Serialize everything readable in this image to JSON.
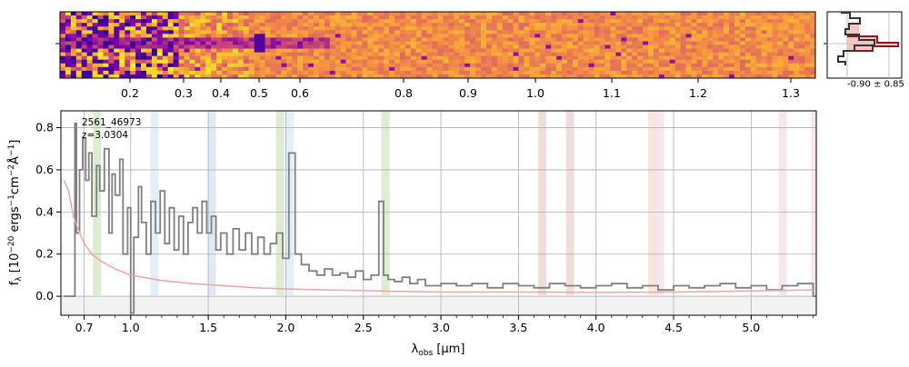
{
  "chart_data": [
    {
      "type": "heatmap",
      "name": "2D spectrum",
      "top_axis_ticks": [
        "0.2",
        "0.3",
        "0.4",
        "0.5",
        "0.6",
        "0.8",
        "0.9",
        "1.0",
        "1.1",
        "1.2",
        "1.3"
      ],
      "colormap": [
        "#0d0887",
        "#7e03a8",
        "#cc4778",
        "#f89540",
        "#f0f921"
      ],
      "side_profile_label": "-0.90 ± 0.85"
    },
    {
      "type": "line",
      "name": "1D spectrum",
      "annotation_id": "2561_46973",
      "annotation_z": "z=3.0304",
      "xlabel_main": "λ",
      "xlabel_sub": "obs",
      "xlabel_unit": " [μm]",
      "ylabel": "f_λ [10^-20 ergs^-1 cm^-2 Å^-1]",
      "xlim": [
        0.55,
        5.42
      ],
      "ylim": [
        -0.09,
        0.88
      ],
      "grid": true,
      "x_ticks": [
        0.7,
        1.0,
        1.5,
        2.0,
        2.5,
        3.0,
        3.5,
        4.0,
        4.5,
        5.0
      ],
      "x_tick_labels": [
        "0.7",
        "1.0",
        "1.5",
        "2.0",
        "2.5",
        "3.0",
        "3.5",
        "4.0",
        "4.5",
        "5.0"
      ],
      "y_ticks": [
        0.0,
        0.2,
        0.4,
        0.6,
        0.8
      ],
      "y_tick_labels": [
        "0.0",
        "0.2",
        "0.4",
        "0.6",
        "0.8"
      ],
      "series": [
        {
          "color": "#808080",
          "x": [
            0.57,
            0.62,
            0.64,
            0.65,
            0.67,
            0.69,
            0.71,
            0.73,
            0.75,
            0.78,
            0.8,
            0.83,
            0.86,
            0.88,
            0.9,
            0.93,
            0.95,
            0.98,
            1.0,
            1.02,
            1.05,
            1.07,
            1.1,
            1.13,
            1.16,
            1.19,
            1.22,
            1.25,
            1.28,
            1.31,
            1.34,
            1.37,
            1.4,
            1.43,
            1.46,
            1.49,
            1.52,
            1.55,
            1.58,
            1.62,
            1.66,
            1.7,
            1.74,
            1.78,
            1.82,
            1.86,
            1.9,
            1.94,
            1.98,
            2.02,
            2.06,
            2.1,
            2.15,
            2.2,
            2.25,
            2.3,
            2.35,
            2.4,
            2.45,
            2.5,
            2.55,
            2.6,
            2.63,
            2.66,
            2.7,
            2.75,
            2.8,
            2.85,
            2.9,
            3.0,
            3.1,
            3.2,
            3.3,
            3.4,
            3.5,
            3.6,
            3.7,
            3.8,
            3.9,
            4.0,
            4.1,
            4.2,
            4.3,
            4.4,
            4.5,
            4.6,
            4.7,
            4.8,
            4.9,
            5.0,
            5.1,
            5.2,
            5.3,
            5.4
          ],
          "y": [
            0.0,
            0.0,
            0.82,
            0.3,
            0.6,
            0.75,
            0.55,
            0.68,
            0.38,
            0.62,
            0.5,
            0.7,
            0.3,
            0.58,
            0.48,
            0.65,
            0.2,
            0.42,
            -0.08,
            0.28,
            0.52,
            0.35,
            0.2,
            0.45,
            0.3,
            0.5,
            0.25,
            0.42,
            0.22,
            0.38,
            0.2,
            0.35,
            0.42,
            0.3,
            0.45,
            0.3,
            0.38,
            0.22,
            0.3,
            0.2,
            0.32,
            0.22,
            0.3,
            0.2,
            0.28,
            0.2,
            0.25,
            0.3,
            0.18,
            0.68,
            0.2,
            0.15,
            0.12,
            0.1,
            0.13,
            0.1,
            0.11,
            0.09,
            0.12,
            0.08,
            0.1,
            0.45,
            0.1,
            0.08,
            0.07,
            0.09,
            0.06,
            0.08,
            0.05,
            0.06,
            0.05,
            0.06,
            0.04,
            0.06,
            0.05,
            0.04,
            0.06,
            0.05,
            0.04,
            0.05,
            0.06,
            0.04,
            0.05,
            0.03,
            0.05,
            0.04,
            0.05,
            0.06,
            0.04,
            0.05,
            0.03,
            0.05,
            0.06,
            0.0
          ]
        },
        {
          "color": "#f4a3a3",
          "x": [
            0.57,
            0.6,
            0.63,
            0.66,
            0.7,
            0.75,
            0.8,
            0.9,
            1.0,
            1.2,
            1.4,
            1.6,
            1.8,
            2.0,
            2.3,
            2.6,
            3.0,
            3.5,
            4.0,
            4.5,
            5.0,
            5.4
          ],
          "y": [
            0.55,
            0.5,
            0.38,
            0.32,
            0.25,
            0.2,
            0.17,
            0.13,
            0.1,
            0.075,
            0.06,
            0.05,
            0.04,
            0.035,
            0.03,
            0.025,
            0.02,
            0.02,
            0.018,
            0.02,
            0.025,
            0.03
          ]
        }
      ],
      "bands": [
        {
          "x": 0.78,
          "color": "#c8e0b4"
        },
        {
          "x": 1.15,
          "color": "#cfe2f3"
        },
        {
          "x": 1.52,
          "color": "#cfd9f0"
        },
        {
          "x": 1.96,
          "color": "#c8e0b4"
        },
        {
          "x": 2.02,
          "color": "#cfe2f3"
        },
        {
          "x": 2.64,
          "color": "#c8e0b4"
        },
        {
          "x": 3.65,
          "color": "#e8c4c4"
        },
        {
          "x": 3.83,
          "color": "#e8c4c4"
        },
        {
          "x": 4.36,
          "color": "#f4d4c4"
        },
        {
          "x": 4.41,
          "color": "#f0d6e6"
        },
        {
          "x": 5.2,
          "color": "#f0d6e6"
        },
        {
          "x": 5.41,
          "color": "#f0d6e6"
        }
      ]
    }
  ]
}
